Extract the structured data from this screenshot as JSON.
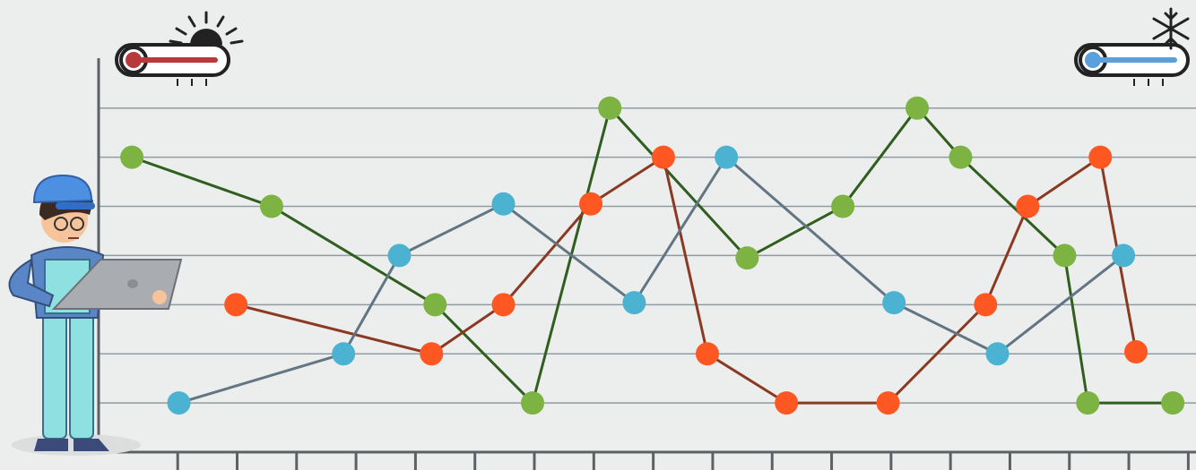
{
  "chart_data": {
    "type": "line",
    "xlim": [
      -0.33,
      18.13
    ],
    "ylim": [
      0,
      8.07
    ],
    "xticks": [
      1,
      2,
      3,
      4,
      5,
      6,
      7,
      8,
      9,
      10,
      11,
      12,
      13,
      14,
      15,
      16,
      17,
      18
    ],
    "yticks": [
      1,
      2,
      3,
      4,
      5,
      6,
      7
    ],
    "grid": true,
    "series": [
      {
        "color": "#7cb342",
        "line_color": "#2f5e1e",
        "x": [
          0.23,
          2.58,
          5.33,
          6.97,
          8.27,
          10.58,
          12.19,
          13.44,
          14.17,
          15.92,
          16.31,
          17.74
        ],
        "values": [
          6,
          5,
          3,
          1,
          7,
          3.95,
          5,
          7,
          6,
          4,
          1,
          1
        ]
      },
      {
        "color": "#ff5722",
        "line_color": "#8a3a22",
        "x": [
          1.98,
          5.27,
          6.48,
          7.95,
          9.17,
          9.91,
          11.24,
          12.95,
          14.59,
          15.3,
          16.52,
          17.12
        ],
        "values": [
          3,
          2,
          3,
          5.05,
          6,
          2,
          1,
          1,
          3,
          5,
          6,
          2.04
        ]
      },
      {
        "color": "#4cb2d2",
        "line_color": "#637583",
        "x": [
          1.02,
          3.79,
          4.73,
          6.48,
          8.68,
          10.23,
          13.05,
          14.79,
          16.91
        ],
        "values": [
          1,
          2,
          4,
          5.05,
          3.04,
          6,
          3.04,
          2,
          4
        ]
      }
    ]
  }
}
